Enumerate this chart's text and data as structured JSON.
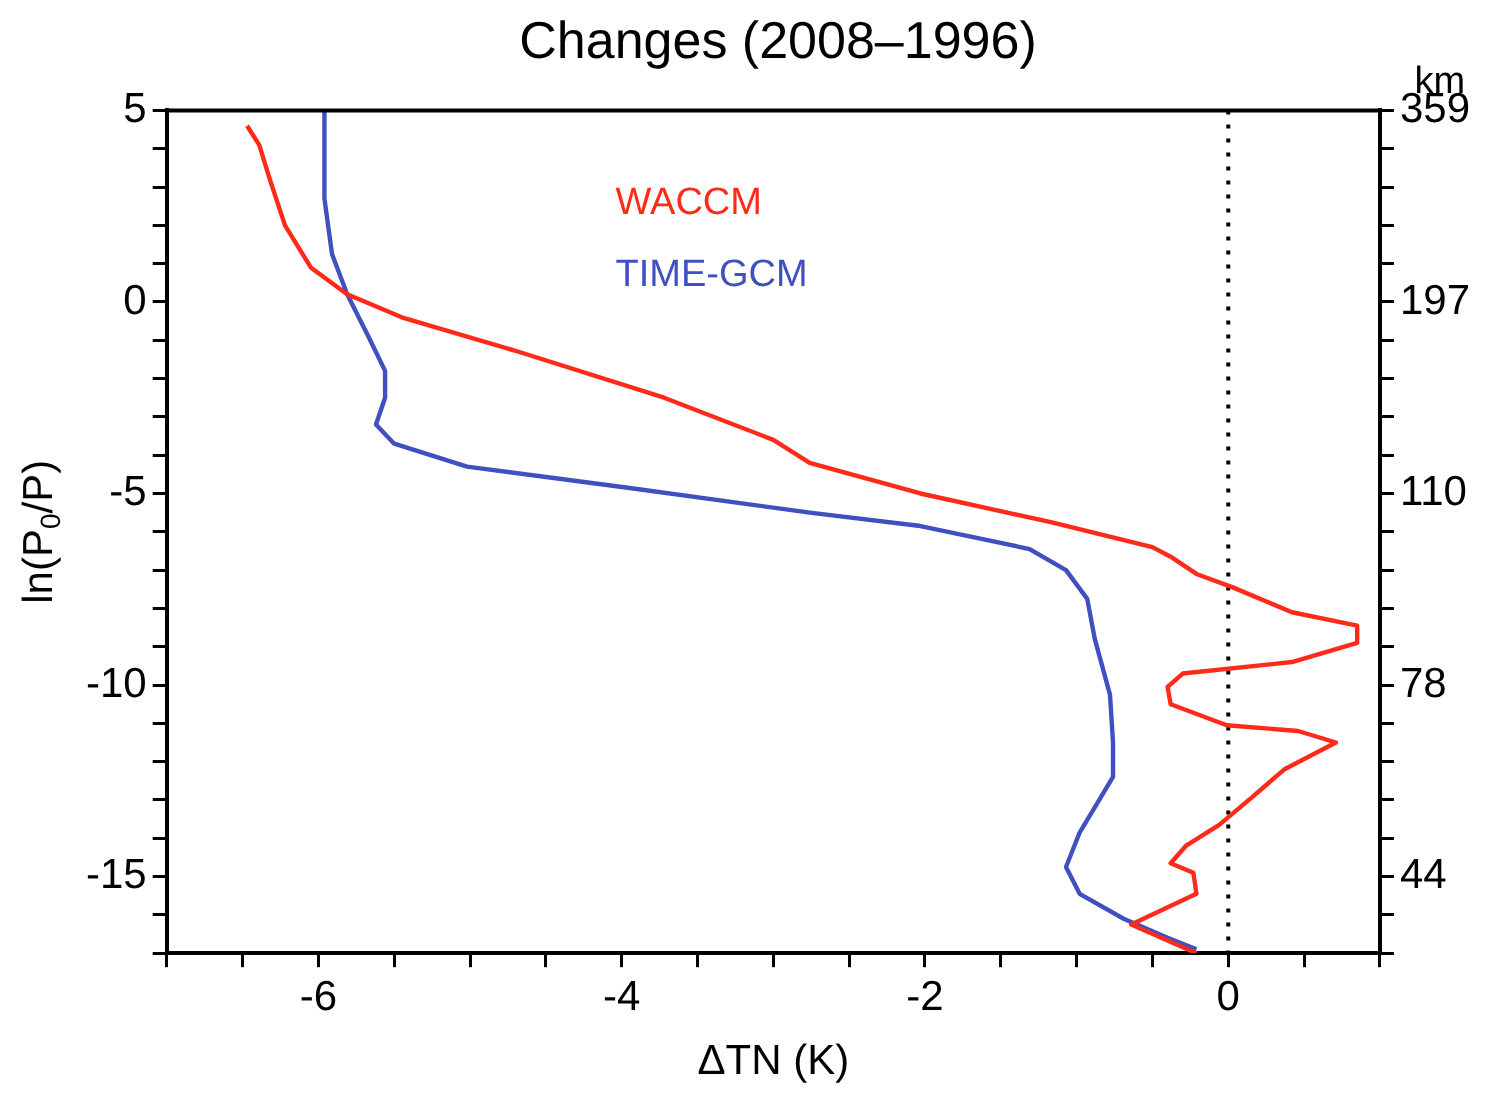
{
  "chart_data": {
    "type": "line",
    "title": "Changes (2008–1996)",
    "xlabel": "ΔTN (K)",
    "ylabel": "ln(P$_{0}$/P)",
    "y2label": "km",
    "xlim": [
      -7,
      1
    ],
    "ylim": [
      -17,
      5
    ],
    "xticks": [
      {
        "value": -7,
        "label": null
      },
      {
        "value": -6.5,
        "label": null
      },
      -6,
      {
        "value": -5.5,
        "label": null
      },
      {
        "value": -5,
        "label": null
      },
      {
        "value": -4.5,
        "label": null
      },
      -4,
      {
        "value": -3.5,
        "label": null
      },
      {
        "value": -3,
        "label": null
      },
      {
        "value": -2.5,
        "label": null
      },
      -2,
      {
        "value": -1.5,
        "label": null
      },
      {
        "value": -1,
        "label": null
      },
      {
        "value": -0.5,
        "label": null
      },
      0,
      {
        "value": 0.5,
        "label": null
      },
      {
        "value": 1,
        "label": null
      }
    ],
    "yticks": [
      5,
      {
        "value": 4,
        "label": null
      },
      {
        "value": 3,
        "label": null
      },
      {
        "value": 2,
        "label": null
      },
      {
        "value": 1,
        "label": null
      },
      0,
      {
        "value": -1,
        "label": null
      },
      {
        "value": -2,
        "label": null
      },
      {
        "value": -3,
        "label": null
      },
      {
        "value": -4,
        "label": null
      },
      -5,
      {
        "value": -6,
        "label": null
      },
      {
        "value": -7,
        "label": null
      },
      {
        "value": -8,
        "label": null
      },
      {
        "value": -9,
        "label": null
      },
      -10,
      {
        "value": -11,
        "label": null
      },
      {
        "value": -12,
        "label": null
      },
      {
        "value": -13,
        "label": null
      },
      {
        "value": -14,
        "label": null
      },
      -15,
      {
        "value": -16,
        "label": null
      },
      {
        "value": -17,
        "label": null
      }
    ],
    "y2_categories": [
      "359",
      null,
      null,
      null,
      null,
      "197",
      null,
      null,
      null,
      null,
      "110",
      null,
      null,
      null,
      null,
      "78",
      null,
      null,
      null,
      null,
      "44",
      null,
      null
    ],
    "series": [
      {
        "name": "WACCM",
        "color": "#ff2a1a",
        "x": [
          -6.47,
          -6.39,
          -6.32,
          -6.22,
          -6.05,
          -5.81,
          -5.45,
          -4.68,
          -3.72,
          -3.0,
          -2.76,
          -2.03,
          -1.17,
          -0.5,
          -0.38,
          -0.21,
          0.03,
          0.42,
          0.85,
          0.85,
          0.42,
          -0.3,
          -0.4,
          -0.38,
          -0.01,
          0.46,
          0.71,
          0.37,
          0.15,
          -0.06,
          -0.28,
          -0.38,
          -0.23,
          -0.21,
          -0.64,
          -0.21
        ],
        "values": [
          4.6,
          4.1,
          3.2,
          2.0,
          0.9,
          0.2,
          -0.4,
          -1.3,
          -2.5,
          -3.6,
          -4.2,
          -5.0,
          -5.75,
          -6.4,
          -6.65,
          -7.1,
          -7.45,
          -8.1,
          -8.45,
          -8.9,
          -9.4,
          -9.7,
          -10.05,
          -10.5,
          -11.05,
          -11.2,
          -11.5,
          -12.2,
          -12.95,
          -13.65,
          -14.2,
          -14.65,
          -14.9,
          -15.45,
          -16.25,
          -17.0
        ]
      },
      {
        "name": "TIME-GCM",
        "color": "#4050c0",
        "x": [
          -5.96,
          -5.96,
          -5.91,
          -5.81,
          -5.67,
          -5.56,
          -5.56,
          -5.62,
          -5.5,
          -5.02,
          -3.96,
          -2.76,
          -2.03,
          -1.31,
          -1.07,
          -0.93,
          -0.88,
          -0.78,
          -0.76,
          -0.76,
          -0.98,
          -1.07,
          -0.98,
          -0.69,
          -0.4,
          -0.21
        ],
        "values": [
          5.0,
          2.7,
          1.25,
          0.2,
          -0.9,
          -1.8,
          -2.5,
          -3.2,
          -3.7,
          -4.3,
          -4.85,
          -5.5,
          -5.85,
          -6.45,
          -7.0,
          -7.75,
          -8.8,
          -10.25,
          -11.5,
          -12.4,
          -13.85,
          -14.75,
          -15.45,
          -16.1,
          -16.6,
          -16.9
        ]
      }
    ],
    "ref_lines": [
      {
        "axis": "x",
        "value": 0,
        "color": "#000000",
        "line_style": "dotted"
      }
    ],
    "legend": "top"
  }
}
